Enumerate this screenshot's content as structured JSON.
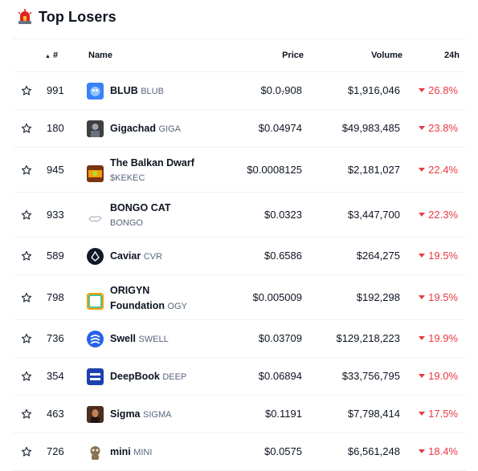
{
  "header": {
    "title": "Top Losers",
    "icon": "siren-icon"
  },
  "columns": {
    "rank": "#",
    "name": "Name",
    "price": "Price",
    "volume": "Volume",
    "change": "24h"
  },
  "rows": [
    {
      "rank": "991",
      "name": "BLUB",
      "symbol": "BLUB",
      "name2": "",
      "price": "$0.0₇908",
      "volume": "$1,916,046",
      "change": "26.8%"
    },
    {
      "rank": "180",
      "name": "Gigachad",
      "symbol": "GIGA",
      "name2": "",
      "price": "$0.04974",
      "volume": "$49,983,485",
      "change": "23.8%"
    },
    {
      "rank": "945",
      "name": "The Balkan Dwarf",
      "symbol": "",
      "name2": "$KEKEC",
      "price": "$0.0008125",
      "volume": "$2,181,027",
      "change": "22.4%"
    },
    {
      "rank": "933",
      "name": "BONGO CAT",
      "symbol": "",
      "name2": "BONGO",
      "price": "$0.0323",
      "volume": "$3,447,700",
      "change": "22.3%"
    },
    {
      "rank": "589",
      "name": "Caviar",
      "symbol": "CVR",
      "name2": "",
      "price": "$0.6586",
      "volume": "$264,275",
      "change": "19.5%"
    },
    {
      "rank": "798",
      "name": "ORIGYN",
      "symbol": "OGY",
      "name2": "Foundation",
      "price": "$0.005009",
      "volume": "$192,298",
      "change": "19.5%"
    },
    {
      "rank": "736",
      "name": "Swell",
      "symbol": "SWELL",
      "name2": "",
      "price": "$0.03709",
      "volume": "$129,218,223",
      "change": "19.9%"
    },
    {
      "rank": "354",
      "name": "DeepBook",
      "symbol": "DEEP",
      "name2": "",
      "price": "$0.06894",
      "volume": "$33,756,795",
      "change": "19.0%"
    },
    {
      "rank": "463",
      "name": "Sigma",
      "symbol": "SIGMA",
      "name2": "",
      "price": "$0.1191",
      "volume": "$7,798,414",
      "change": "17.5%"
    },
    {
      "rank": "726",
      "name": "mini",
      "symbol": "MINI",
      "name2": "",
      "price": "$0.0575",
      "volume": "$6,561,248",
      "change": "18.4%"
    }
  ],
  "colors": {
    "negative": "#ea3943",
    "muted": "#58667e",
    "divider": "#eff2f5"
  }
}
